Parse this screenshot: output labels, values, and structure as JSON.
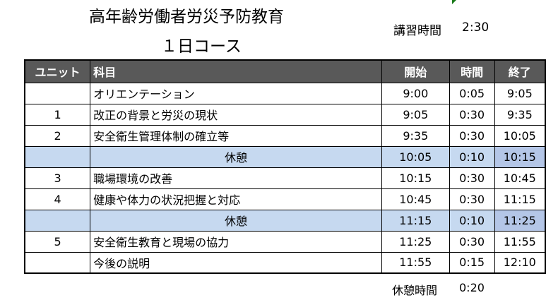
{
  "title": "高年齢労働者労災予防教育",
  "subtitle": "１日コース",
  "course_hours": {
    "label": "講習時間",
    "value": "2:30"
  },
  "columns": [
    "ユニット",
    "科目",
    "開始",
    "時間",
    "終了"
  ],
  "rows": [
    {
      "unit": "",
      "subject": "オリエンテーション",
      "start": "9:00",
      "duration": "0:05",
      "end": "9:05",
      "break": false
    },
    {
      "unit": "1",
      "subject": "改正の背景と労災の現状",
      "start": "9:05",
      "duration": "0:30",
      "end": "9:35",
      "break": false
    },
    {
      "unit": "2",
      "subject": "安全衛生管理体制の確立等",
      "start": "9:35",
      "duration": "0:30",
      "end": "10:05",
      "break": false
    },
    {
      "unit": "",
      "subject": "休憩",
      "start": "10:05",
      "duration": "0:10",
      "end": "10:15",
      "break": true
    },
    {
      "unit": "3",
      "subject": "職場環境の改善",
      "start": "10:15",
      "duration": "0:30",
      "end": "10:45",
      "break": false
    },
    {
      "unit": "4",
      "subject": "健康や体力の状況把握と対応",
      "start": "10:45",
      "duration": "0:30",
      "end": "11:15",
      "break": false
    },
    {
      "unit": "",
      "subject": "休憩",
      "start": "11:15",
      "duration": "0:10",
      "end": "11:25",
      "break": true
    },
    {
      "unit": "5",
      "subject": "安全衛生教育と現場の協力",
      "start": "11:25",
      "duration": "0:30",
      "end": "11:55",
      "break": false
    },
    {
      "unit": "",
      "subject": "今後の説明",
      "start": "11:55",
      "duration": "0:15",
      "end": "12:10",
      "break": false
    }
  ],
  "break_total": {
    "label": "休憩時間",
    "value": "0:20"
  },
  "colors": {
    "header_bg": "#595959",
    "break_bg": "#c6d9f0"
  }
}
